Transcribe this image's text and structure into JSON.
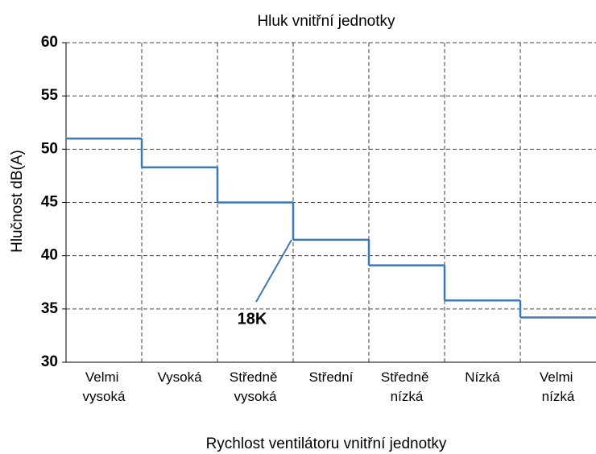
{
  "chart_data": {
    "type": "step",
    "title": "Hluk vnitřní jednotky",
    "x_label": "Rychlost ventilátoru vnitřní jednotky",
    "y_label": "Hlučnost dB(A)",
    "categories": [
      "Velmi vysoká",
      "Vysoká",
      "Středně vysoká",
      "Střední",
      "Středně nízká",
      "Nízká",
      "Velmi nízká"
    ],
    "values": [
      51,
      48.3,
      45,
      41.5,
      39.1,
      35.8,
      34.2
    ],
    "color": "#3d78b8",
    "ylim": [
      30,
      60
    ],
    "yticks": [
      30,
      35,
      40,
      45,
      50,
      55,
      60
    ],
    "grid": true,
    "annotation": "18K"
  }
}
